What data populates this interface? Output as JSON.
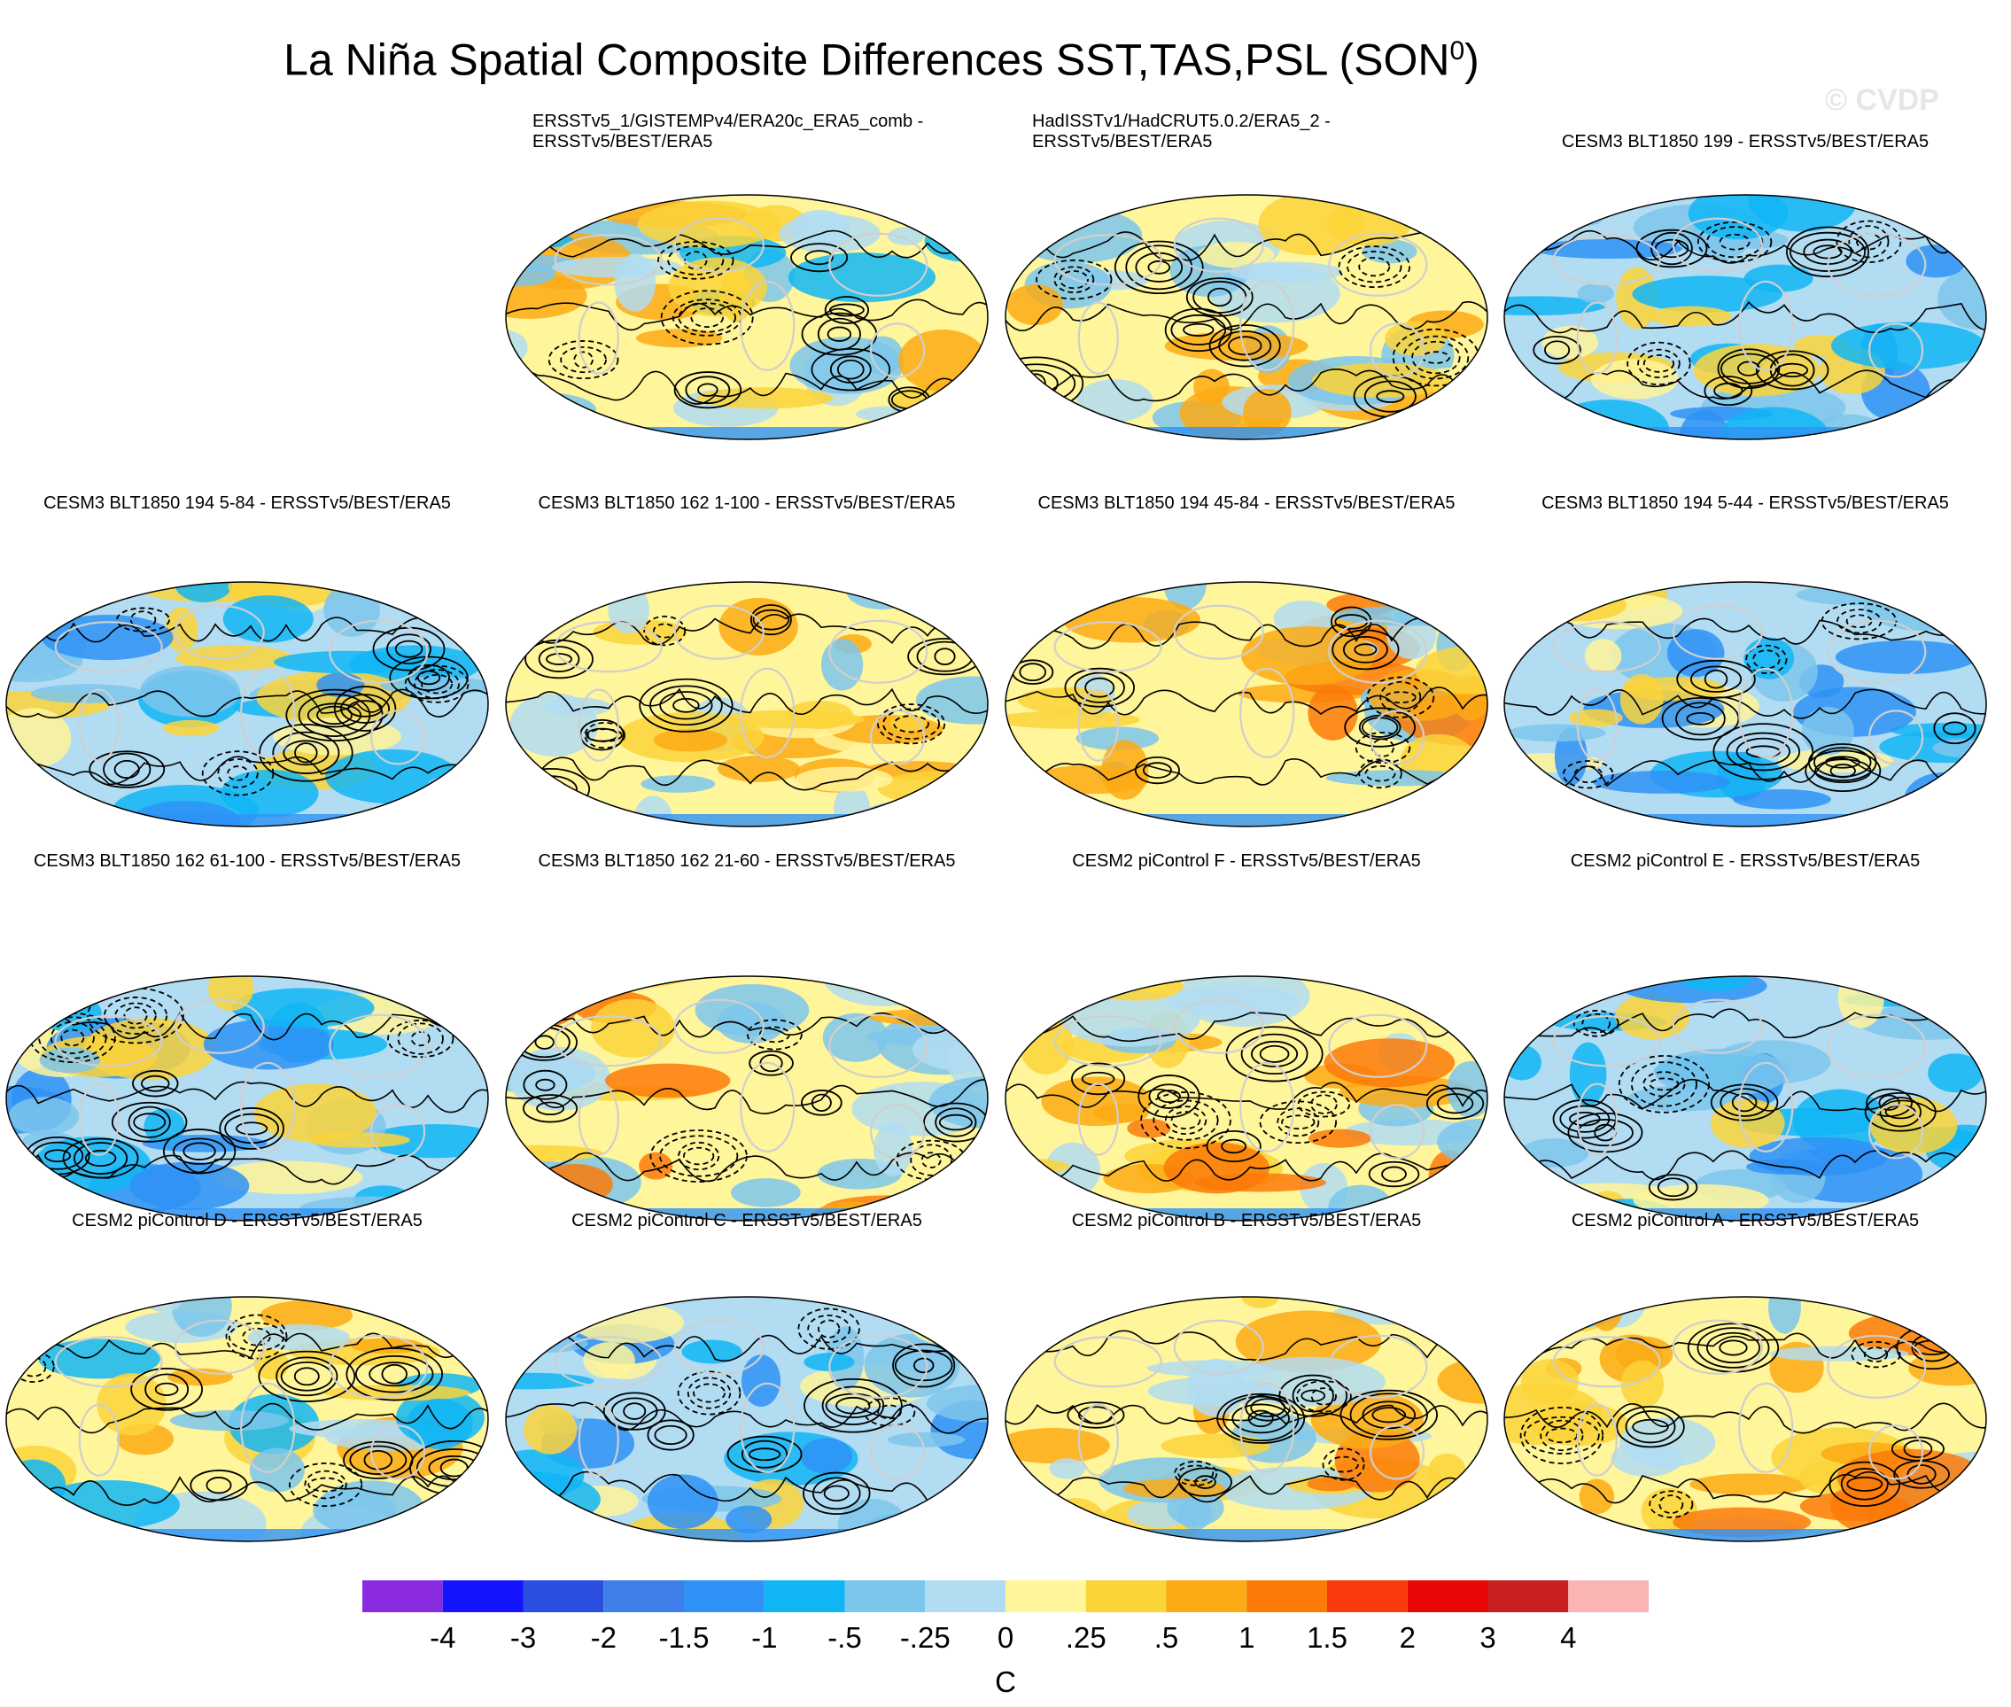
{
  "title": {
    "text": "La Niña Spatial Composite Differences SST,TAS,PSL (SON",
    "superscript": "0",
    "close": ")"
  },
  "copyright": "© CVDP",
  "panels": [
    {
      "title_lines": [
        "ERSSTv5_1/GISTEMPv4/ERA20c_ERA5_comb -",
        "ERSSTv5/BEST/ERA5"
      ],
      "dominant": "mixed"
    },
    {
      "title_lines": [
        "HadISSTv1/HadCRUT5.0.2/ERA5_2 -",
        "ERSSTv5/BEST/ERA5"
      ],
      "dominant": "warm-weak"
    },
    {
      "title_lines": [
        "CESM3 BLT1850 199 - ERSSTv5/BEST/ERA5"
      ],
      "dominant": "cool"
    },
    {
      "title_lines": [
        "CESM3 BLT1850 194 5-84 - ERSSTv5/BEST/ERA5"
      ],
      "dominant": "cool"
    },
    {
      "title_lines": [
        "CESM3 BLT1850 162 1-100 - ERSSTv5/BEST/ERA5"
      ],
      "dominant": "warm-weak"
    },
    {
      "title_lines": [
        "CESM3 BLT1850 194 45-84 - ERSSTv5/BEST/ERA5"
      ],
      "dominant": "warm"
    },
    {
      "title_lines": [
        "CESM3 BLT1850 194 5-44 - ERSSTv5/BEST/ERA5"
      ],
      "dominant": "cool"
    },
    {
      "title_lines": [
        "CESM3 BLT1850 162 61-100 - ERSSTv5/BEST/ERA5"
      ],
      "dominant": "cool"
    },
    {
      "title_lines": [
        "CESM3 BLT1850 162 21-60 - ERSSTv5/BEST/ERA5"
      ],
      "dominant": "warm"
    },
    {
      "title_lines": [
        "CESM2 piControl F - ERSSTv5/BEST/ERA5"
      ],
      "dominant": "warm"
    },
    {
      "title_lines": [
        "CESM2 piControl E - ERSSTv5/BEST/ERA5"
      ],
      "dominant": "cool"
    },
    {
      "title_lines": [
        "CESM2 piControl D - ERSSTv5/BEST/ERA5"
      ],
      "dominant": "mixed"
    },
    {
      "title_lines": [
        "CESM2 piControl C - ERSSTv5/BEST/ERA5"
      ],
      "dominant": "cool"
    },
    {
      "title_lines": [
        "CESM2 piControl B - ERSSTv5/BEST/ERA5"
      ],
      "dominant": "warm"
    },
    {
      "title_lines": [
        "CESM2 piControl A - ERSSTv5/BEST/ERA5"
      ],
      "dominant": "warm"
    }
  ],
  "colorbar": {
    "units": "C",
    "labels": [
      "-4",
      "-3",
      "-2",
      "-1.5",
      "-1",
      "-.5",
      "-.25",
      "0",
      ".25",
      ".5",
      "1",
      "1.5",
      "2",
      "3",
      "4"
    ],
    "colors": [
      "#8a2be2",
      "#1414ff",
      "#2a4fe0",
      "#3f7fea",
      "#2e92f6",
      "#10b6f4",
      "#7cc6ec",
      "#b2dcf2",
      "#fff59a",
      "#fbd43a",
      "#fbaa14",
      "#fb7a08",
      "#fa3a0a",
      "#e80707",
      "#c82020",
      "#fbb4b4"
    ]
  }
}
